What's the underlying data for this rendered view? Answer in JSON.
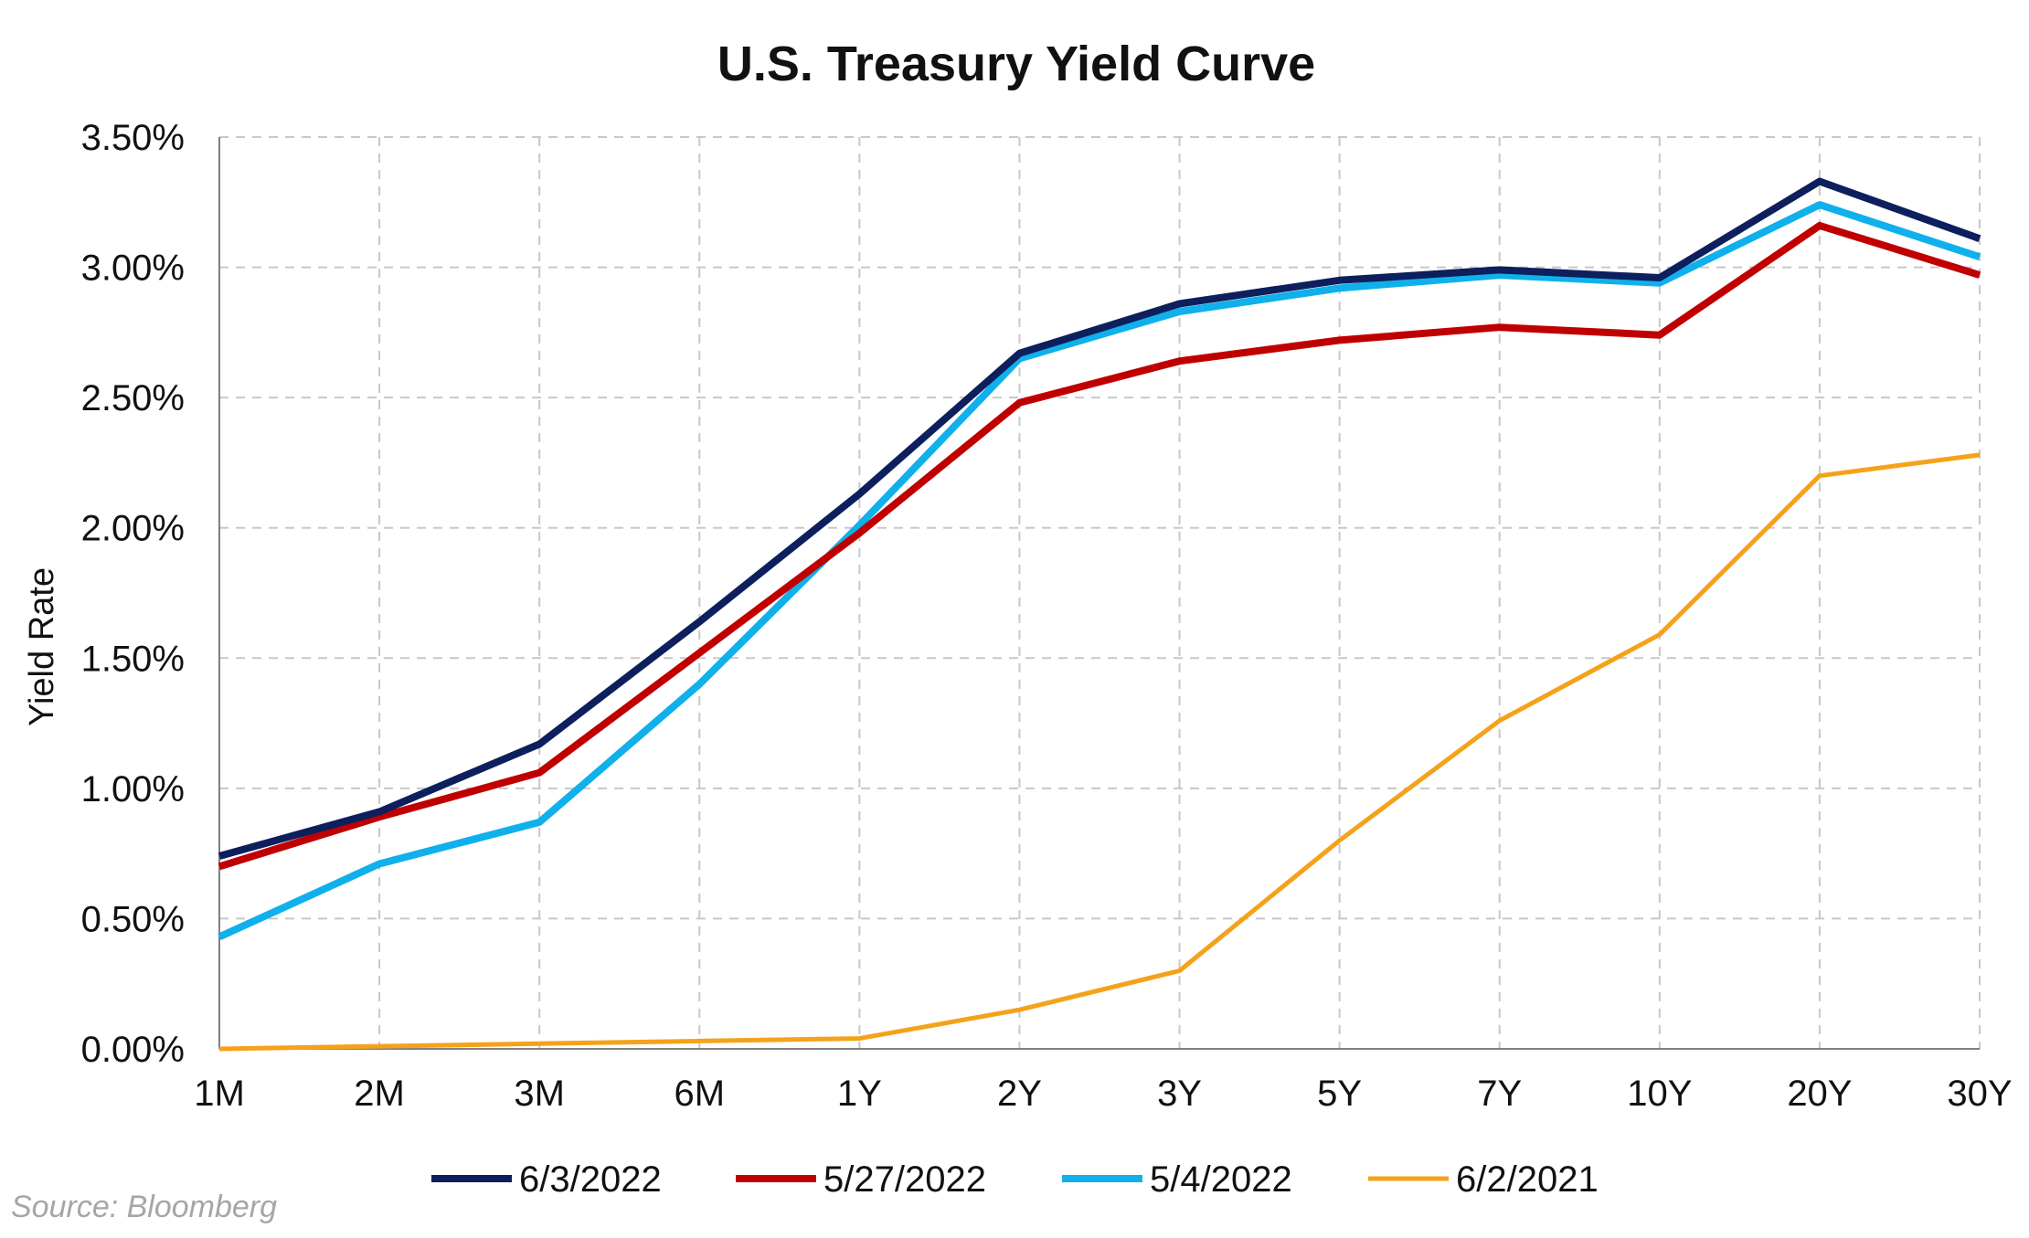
{
  "chart_data": {
    "type": "line",
    "title": "U.S. Treasury Yield Curve",
    "xlabel": "",
    "ylabel": "Yield Rate",
    "categories": [
      "1M",
      "2M",
      "3M",
      "6M",
      "1Y",
      "2Y",
      "3Y",
      "5Y",
      "7Y",
      "10Y",
      "20Y",
      "30Y"
    ],
    "ylim": [
      0,
      3.5
    ],
    "yticks": [
      {
        "value": 0,
        "label": "0.00%"
      },
      {
        "value": 0.5,
        "label": "0.50%"
      },
      {
        "value": 1.0,
        "label": "1.00%"
      },
      {
        "value": 1.5,
        "label": "1.50%"
      },
      {
        "value": 2.0,
        "label": "2.00%"
      },
      {
        "value": 2.5,
        "label": "2.50%"
      },
      {
        "value": 3.0,
        "label": "3.00%"
      },
      {
        "value": 3.5,
        "label": "3.50%"
      }
    ],
    "grid": true,
    "legend_position": "bottom",
    "series": [
      {
        "name": "6/3/2022",
        "color": "#0d1f5c",
        "values": [
          0.74,
          0.91,
          1.17,
          1.64,
          2.13,
          2.67,
          2.86,
          2.95,
          2.99,
          2.96,
          3.33,
          3.11
        ]
      },
      {
        "name": "5/27/2022",
        "color": "#c00000",
        "values": [
          0.7,
          0.89,
          1.06,
          1.52,
          1.98,
          2.48,
          2.64,
          2.72,
          2.77,
          2.74,
          3.16,
          2.97
        ]
      },
      {
        "name": "5/4/2022",
        "color": "#0fb0eb",
        "values": [
          0.43,
          0.71,
          0.87,
          1.4,
          2.01,
          2.65,
          2.83,
          2.92,
          2.97,
          2.94,
          3.24,
          3.04
        ]
      },
      {
        "name": "6/2/2021",
        "color": "#f5a21b",
        "values": [
          0.0,
          0.01,
          0.02,
          0.03,
          0.04,
          0.15,
          0.3,
          0.8,
          1.26,
          1.59,
          2.2,
          2.28
        ]
      }
    ]
  },
  "source": "Source: Bloomberg"
}
